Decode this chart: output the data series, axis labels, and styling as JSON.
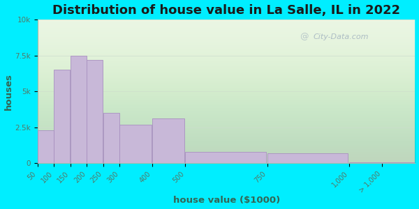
{
  "title": "Distribution of house value in La Salle, IL in 2022",
  "xlabel": "house value ($1000)",
  "ylabel": "houses",
  "bar_edges": [
    50,
    100,
    150,
    200,
    250,
    300,
    400,
    500,
    750,
    1000,
    1100
  ],
  "bar_labels": [
    "50",
    "100",
    "150",
    "200",
    "250",
    "300",
    "400",
    "500",
    "750",
    "1,000",
    "> 1,000"
  ],
  "bar_values": [
    2300,
    6500,
    7500,
    7200,
    3500,
    2700,
    3100,
    800,
    700,
    80,
    60
  ],
  "bar_color": "#c8b8d8",
  "bar_edge_color": "#a890c0",
  "ylim": [
    0,
    10000
  ],
  "yticks": [
    0,
    2500,
    5000,
    7500,
    10000
  ],
  "ytick_labels": [
    "0",
    "2.5k",
    "5k",
    "7.5k",
    "10k"
  ],
  "bg_outer": "#00eeff",
  "bg_plot": "#e8f5e0",
  "title_fontsize": 13,
  "axis_label_fontsize": 9.5,
  "watermark_text": "City-Data.com",
  "title_color": "#1a1a1a",
  "tick_color": "#557766",
  "label_color": "#336655"
}
